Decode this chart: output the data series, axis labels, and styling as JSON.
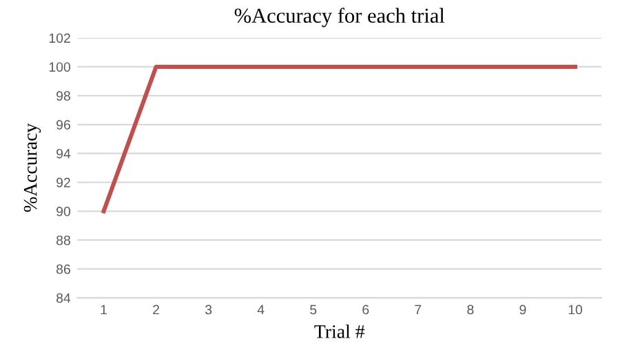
{
  "chart_data": {
    "type": "line",
    "title": "%Accuracy for each trial",
    "xlabel": "Trial #",
    "ylabel": "%Accuracy",
    "categories": [
      "1",
      "2",
      "3",
      "4",
      "5",
      "6",
      "7",
      "8",
      "9",
      "10"
    ],
    "series": [
      {
        "color": "#c0504d",
        "values": [
          90,
          100,
          100,
          100,
          100,
          100,
          100,
          100,
          100,
          100
        ]
      }
    ],
    "ylim": [
      84,
      102
    ],
    "yticks": [
      84,
      86,
      88,
      90,
      92,
      94,
      96,
      98,
      100,
      102
    ],
    "grid": "y",
    "legend": false,
    "marker": "none",
    "line_style": "solid"
  }
}
